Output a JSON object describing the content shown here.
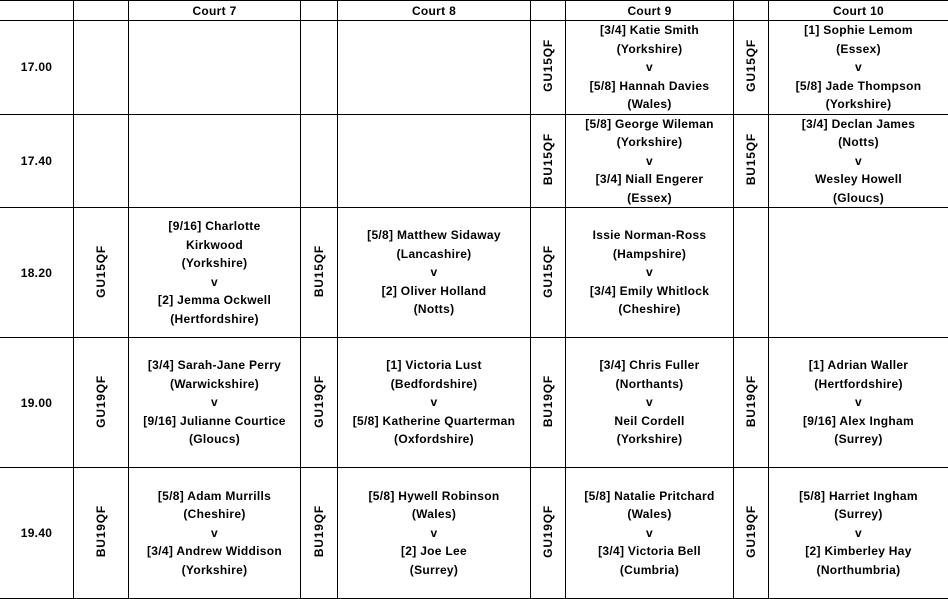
{
  "header": {
    "courts": [
      "Court 7",
      "Court 8",
      "Court 9",
      "Court 10"
    ]
  },
  "rows": [
    {
      "time": "17.00",
      "courts": [
        {
          "cat": "",
          "lines": []
        },
        {
          "cat": "",
          "lines": []
        },
        {
          "cat": "GU15QF",
          "lines": [
            "[3/4] Katie Smith",
            "(Yorkshire)",
            "v",
            "[5/8] Hannah Davies",
            "(Wales)"
          ]
        },
        {
          "cat": "GU15QF",
          "lines": [
            "[1] Sophie Lemom",
            "(Essex)",
            "v",
            "[5/8] Jade Thompson",
            "(Yorkshire)"
          ]
        }
      ]
    },
    {
      "time": "17.40",
      "courts": [
        {
          "cat": "",
          "lines": []
        },
        {
          "cat": "",
          "lines": []
        },
        {
          "cat": "BU15QF",
          "lines": [
            "[5/8] George Wileman",
            "(Yorkshire)",
            "v",
            "[3/4] Niall Engerer",
            "(Essex)"
          ]
        },
        {
          "cat": "BU15QF",
          "lines": [
            "[3/4] Declan James",
            "(Notts)",
            "v",
            "Wesley Howell",
            "(Gloucs)"
          ]
        }
      ]
    },
    {
      "time": "18.20",
      "courts": [
        {
          "cat": "GU15QF",
          "lines": [
            "[9/16] Charlotte",
            "Kirkwood",
            "(Yorkshire)",
            "v",
            "[2] Jemma Ockwell",
            "(Hertfordshire)"
          ]
        },
        {
          "cat": "BU15QF",
          "lines": [
            "[5/8] Matthew Sidaway",
            "(Lancashire)",
            "v",
            "[2] Oliver Holland",
            "(Notts)"
          ]
        },
        {
          "cat": "GU15QF",
          "lines": [
            "Issie Norman-Ross",
            "(Hampshire)",
            "v",
            "[3/4] Emily Whitlock",
            "(Cheshire)"
          ]
        },
        {
          "cat": "",
          "lines": []
        }
      ]
    },
    {
      "time": "19.00",
      "courts": [
        {
          "cat": "GU19QF",
          "lines": [
            "[3/4] Sarah-Jane Perry",
            "(Warwickshire)",
            "v",
            "[9/16] Julianne Courtice",
            "(Gloucs)"
          ]
        },
        {
          "cat": "GU19QF",
          "lines": [
            "[1] Victoria Lust",
            "(Bedfordshire)",
            "v",
            "[5/8] Katherine Quarterman",
            "(Oxfordshire)"
          ]
        },
        {
          "cat": "BU19QF",
          "lines": [
            "[3/4] Chris Fuller",
            "(Northants)",
            "v",
            "Neil Cordell",
            "(Yorkshire)"
          ]
        },
        {
          "cat": "BU19QF",
          "lines": [
            "[1] Adrian Waller",
            "(Hertfordshire)",
            "v",
            "[9/16] Alex Ingham",
            "(Surrey)"
          ]
        }
      ]
    },
    {
      "time": "19.40",
      "courts": [
        {
          "cat": "BU19QF",
          "lines": [
            "[5/8] Adam Murrills",
            "(Cheshire)",
            "v",
            "[3/4] Andrew Widdison",
            "(Yorkshire)"
          ]
        },
        {
          "cat": "BU19QF",
          "lines": [
            "[5/8] Hywell Robinson",
            "(Wales)",
            "v",
            "[2] Joe Lee",
            "(Surrey)"
          ]
        },
        {
          "cat": "GU19QF",
          "lines": [
            "[5/8] Natalie Pritchard",
            "(Wales)",
            "v",
            "[3/4] Victoria Bell",
            "(Cumbria)"
          ]
        },
        {
          "cat": "GU19QF",
          "lines": [
            "[5/8] Harriet Ingham",
            "(Surrey)",
            "v",
            "[2] Kimberley Hay",
            "(Northumbria)"
          ]
        }
      ]
    }
  ]
}
